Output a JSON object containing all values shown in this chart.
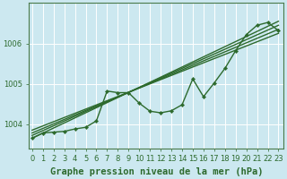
{
  "xlabel": "Graphe pression niveau de la mer (hPa)",
  "bg_color": "#cce8f0",
  "grid_color": "#ffffff",
  "line_color": "#2d6a2d",
  "marker_color": "#2d6a2d",
  "x_ticks": [
    0,
    1,
    2,
    3,
    4,
    5,
    6,
    7,
    8,
    9,
    10,
    11,
    12,
    13,
    14,
    15,
    16,
    17,
    18,
    19,
    20,
    21,
    22,
    23
  ],
  "y_ticks": [
    1004,
    1005,
    1006
  ],
  "ylim": [
    1003.4,
    1007.0
  ],
  "xlim": [
    -0.3,
    23.5
  ],
  "straight_lines": [
    {
      "x0": 0,
      "y0": 1003.65,
      "x1": 23,
      "y1": 1006.55
    },
    {
      "x0": 0,
      "y0": 1003.72,
      "x1": 23,
      "y1": 1006.45
    },
    {
      "x0": 0,
      "y0": 1003.78,
      "x1": 23,
      "y1": 1006.35
    },
    {
      "x0": 0,
      "y0": 1003.85,
      "x1": 23,
      "y1": 1006.25
    }
  ],
  "wiggly_line": [
    1003.65,
    1003.78,
    1003.8,
    1003.82,
    1003.88,
    1003.92,
    1004.08,
    1004.82,
    1004.78,
    1004.78,
    1004.52,
    1004.32,
    1004.28,
    1004.33,
    1004.48,
    1005.12,
    1004.68,
    1005.02,
    1005.38,
    1005.82,
    1006.22,
    1006.45,
    1006.52,
    1006.32
  ],
  "show_markers": true,
  "line_width": 1.0,
  "xlabel_fontsize": 7.5,
  "tick_fontsize": 6.0,
  "tick_color": "#2d6a2d",
  "axis_color": "#4a7a4a",
  "grid_linewidth": 0.7
}
